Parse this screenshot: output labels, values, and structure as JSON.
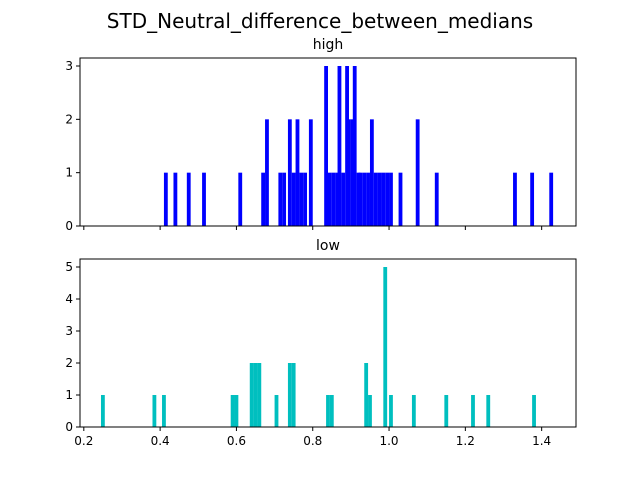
{
  "figure": {
    "suptitle": "STD_Neutral_difference_between_medians"
  },
  "chart_data": [
    {
      "type": "bar",
      "title": "high",
      "xlabel": "",
      "ylabel": "",
      "xlim": [
        0.19,
        1.49
      ],
      "ylim": [
        0,
        3.15
      ],
      "bin_width": 0.01,
      "color": "#0000ff",
      "yticks": [
        0,
        1,
        2,
        3
      ],
      "xticks": [
        0.2,
        0.4,
        0.6,
        0.8,
        1.0,
        1.2,
        1.4
      ],
      "xticklabels_visible": false,
      "bins": [
        [
          0.415,
          1
        ],
        [
          0.44,
          1
        ],
        [
          0.475,
          1
        ],
        [
          0.515,
          1
        ],
        [
          0.61,
          1
        ],
        [
          0.67,
          1
        ],
        [
          0.68,
          2
        ],
        [
          0.715,
          1
        ],
        [
          0.725,
          1
        ],
        [
          0.74,
          2
        ],
        [
          0.75,
          1
        ],
        [
          0.76,
          2
        ],
        [
          0.77,
          1
        ],
        [
          0.78,
          1
        ],
        [
          0.795,
          2
        ],
        [
          0.835,
          3
        ],
        [
          0.845,
          1
        ],
        [
          0.855,
          1
        ],
        [
          0.865,
          1
        ],
        [
          0.87,
          3
        ],
        [
          0.88,
          1
        ],
        [
          0.89,
          3
        ],
        [
          0.895,
          2
        ],
        [
          0.905,
          2
        ],
        [
          0.91,
          3
        ],
        [
          0.92,
          1
        ],
        [
          0.925,
          1
        ],
        [
          0.935,
          1
        ],
        [
          0.945,
          1
        ],
        [
          0.955,
          2
        ],
        [
          0.965,
          1
        ],
        [
          0.975,
          1
        ],
        [
          0.985,
          1
        ],
        [
          0.995,
          1
        ],
        [
          1.005,
          1
        ],
        [
          1.03,
          1
        ],
        [
          1.075,
          2
        ],
        [
          1.125,
          1
        ],
        [
          1.33,
          1
        ],
        [
          1.375,
          1
        ],
        [
          1.425,
          1
        ]
      ]
    },
    {
      "type": "bar",
      "title": "low",
      "xlabel": "",
      "ylabel": "",
      "xlim": [
        0.19,
        1.49
      ],
      "ylim": [
        0,
        5.25
      ],
      "bin_width": 0.01,
      "color": "#00bfbf",
      "yticks": [
        0,
        1,
        2,
        3,
        4,
        5
      ],
      "xticks": [
        0.2,
        0.4,
        0.6,
        0.8,
        1.0,
        1.2,
        1.4
      ],
      "xticklabels": [
        "0.2",
        "0.4",
        "0.6",
        "0.8",
        "1.0",
        "1.2",
        "1.4"
      ],
      "bins": [
        [
          0.25,
          1
        ],
        [
          0.385,
          1
        ],
        [
          0.41,
          1
        ],
        [
          0.59,
          1
        ],
        [
          0.6,
          1
        ],
        [
          0.64,
          2
        ],
        [
          0.65,
          2
        ],
        [
          0.66,
          2
        ],
        [
          0.705,
          1
        ],
        [
          0.74,
          2
        ],
        [
          0.75,
          2
        ],
        [
          0.84,
          1
        ],
        [
          0.85,
          1
        ],
        [
          0.94,
          2
        ],
        [
          0.95,
          1
        ],
        [
          0.99,
          5
        ],
        [
          1.005,
          1
        ],
        [
          1.065,
          1
        ],
        [
          1.15,
          1
        ],
        [
          1.22,
          1
        ],
        [
          1.26,
          1
        ],
        [
          1.38,
          1
        ]
      ]
    }
  ]
}
